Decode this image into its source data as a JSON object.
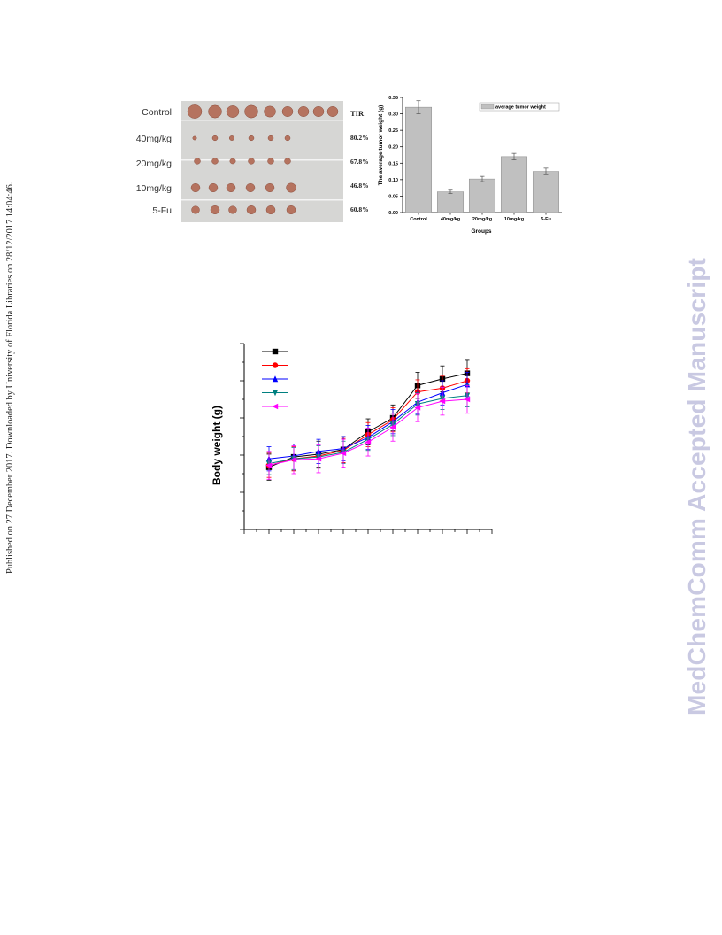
{
  "sidebar_note": "Published on 27 December 2017. Downloaded by University of Florida Libraries on 28/12/2017 14:04:46.",
  "watermark": "MedChemComm Accepted Manuscript",
  "tumor_photo": {
    "groups": [
      "Control",
      "40mg/kg",
      "20mg/kg",
      "10mg/kg",
      "5-Fu"
    ],
    "tir_header": "TIR",
    "tir_values": [
      "",
      "80.2%",
      "67.8%",
      "46.8%",
      "60.8%"
    ],
    "tumor_color": "#b5735f",
    "background_color": "#d6d6d4"
  },
  "chart_data": [
    {
      "type": "bar",
      "title": "",
      "xlabel": "Groups",
      "ylabel": "The average tumor weight (g)",
      "categories": [
        "Control",
        "40mg/kg",
        "20mg/kg",
        "10mg/kg",
        "5-Fu"
      ],
      "series": [
        {
          "name": "average tumor weight",
          "values": [
            0.32,
            0.063,
            0.102,
            0.17,
            0.125
          ],
          "errors": [
            0.02,
            0.005,
            0.008,
            0.01,
            0.01
          ],
          "color": "#c0c0c0"
        }
      ],
      "ylim": [
        0,
        0.35
      ],
      "yticks": [
        "0.00",
        "0.05",
        "0.10",
        "0.15",
        "0.20",
        "0.25",
        "0.30",
        "0.35"
      ],
      "legend_position": "top-right",
      "grid": false
    },
    {
      "type": "line",
      "title": "",
      "xlabel": "",
      "ylabel": "Body weight (g)",
      "x": [
        1,
        2,
        3,
        4,
        5,
        6,
        7,
        8,
        9
      ],
      "series": [
        {
          "marker": "square",
          "color": "#000000",
          "values": [
            16.7,
            17.8,
            18.1,
            18.6,
            20.5,
            22.0,
            25.5,
            26.2,
            26.8
          ],
          "error": 1.4
        },
        {
          "marker": "circle",
          "color": "#ff0000",
          "values": [
            16.9,
            17.6,
            17.9,
            18.5,
            20.2,
            21.8,
            24.8,
            25.2,
            26.0
          ],
          "error": 1.3
        },
        {
          "marker": "triangle-up",
          "color": "#0000ff",
          "values": [
            17.6,
            17.9,
            18.4,
            18.7,
            19.9,
            21.6,
            23.7,
            24.7,
            25.6
          ],
          "error": 1.3
        },
        {
          "marker": "triangle-down",
          "color": "#008080",
          "values": [
            17.1,
            17.6,
            17.8,
            18.3,
            19.7,
            21.3,
            23.5,
            24.1,
            24.4
          ],
          "error": 1.2
        },
        {
          "marker": "triangle-left",
          "color": "#ff00ff",
          "values": [
            16.9,
            17.5,
            17.6,
            18.2,
            19.4,
            21.0,
            23.1,
            23.8,
            24.0
          ],
          "error": 1.5
        }
      ],
      "ylim": [
        10,
        30
      ],
      "y_tick_count": 11,
      "x_tick_count": 21,
      "tick_labels_shown": false,
      "legend_position": "top-left"
    }
  ]
}
